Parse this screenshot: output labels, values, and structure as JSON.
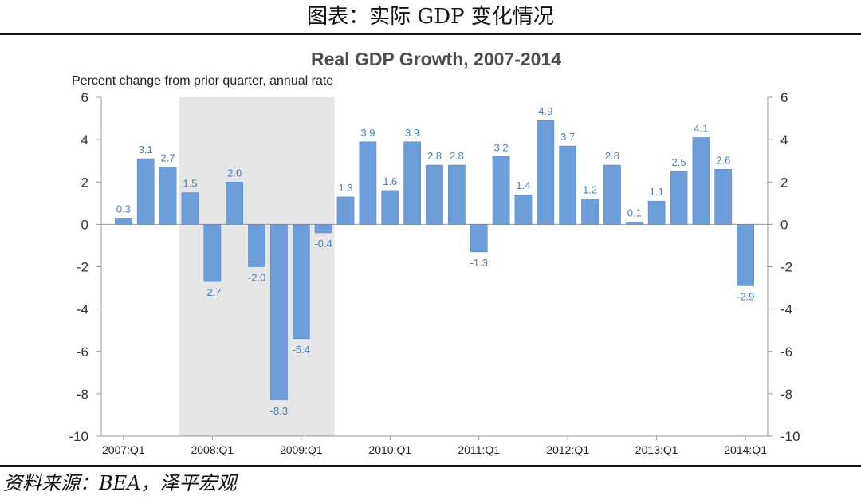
{
  "figure_caption": "图表：实际 GDP 变化情况",
  "source_note": "资料来源：BEA，泽平宏观",
  "colors": {
    "bar": "#6d9eda",
    "bar_edge": "#4f7fc0",
    "label": "#4a7ebb",
    "recession": "#e6e6e6",
    "axis": "#999999"
  },
  "chart_data": {
    "type": "bar",
    "title": "Real GDP Growth, 2007-2014",
    "subtitle": "Percent change from prior quarter, annual rate",
    "ylim": [
      -10,
      6
    ],
    "yticks": [
      6,
      4,
      2,
      0,
      -2,
      -4,
      -6,
      -8,
      -10
    ],
    "ytick_labels": [
      "6",
      "4",
      "2",
      "0",
      "-2",
      "-4",
      "-6",
      "-8",
      "-10"
    ],
    "dual_y_axis": true,
    "grid": false,
    "categories": [
      "2007:Q1",
      "2007:Q2",
      "2007:Q3",
      "2007:Q4",
      "2008:Q1",
      "2008:Q2",
      "2008:Q3",
      "2008:Q4",
      "2009:Q1",
      "2009:Q2",
      "2009:Q3",
      "2009:Q4",
      "2010:Q1",
      "2010:Q2",
      "2010:Q3",
      "2010:Q4",
      "2011:Q1",
      "2011:Q2",
      "2011:Q3",
      "2011:Q4",
      "2012:Q1",
      "2012:Q2",
      "2012:Q3",
      "2012:Q4",
      "2013:Q1",
      "2013:Q2",
      "2013:Q3",
      "2013:Q4",
      "2014:Q1"
    ],
    "values": [
      0.3,
      3.1,
      2.7,
      1.5,
      -2.7,
      2.0,
      -2.0,
      -8.3,
      -5.4,
      -0.4,
      1.3,
      3.9,
      1.6,
      3.9,
      2.8,
      2.8,
      -1.3,
      3.2,
      1.4,
      4.9,
      3.7,
      1.2,
      2.8,
      0.1,
      1.1,
      2.5,
      4.1,
      2.6,
      -2.9
    ],
    "data_labels": [
      "0.3",
      "3.1",
      "2.7",
      "1.5",
      "-2.7",
      "2.0",
      "-2.0",
      "-8.3",
      "-5.4",
      "-0.4",
      "1.3",
      "3.9",
      "1.6",
      "3.9",
      "2.8",
      "2.8",
      "-1.3",
      "3.2",
      "1.4",
      "4.9",
      "3.7",
      "1.2",
      "2.8",
      "0.1",
      "1.1",
      "2.5",
      "4.1",
      "2.6",
      "-2.9"
    ],
    "xtick_labels": [
      "2007:Q1",
      "2008:Q1",
      "2009:Q1",
      "2010:Q1",
      "2011:Q1",
      "2012:Q1",
      "2013:Q1",
      "2014:Q1"
    ],
    "recession_shading": {
      "from": "2007:Q4",
      "to": "2009:Q2"
    }
  }
}
